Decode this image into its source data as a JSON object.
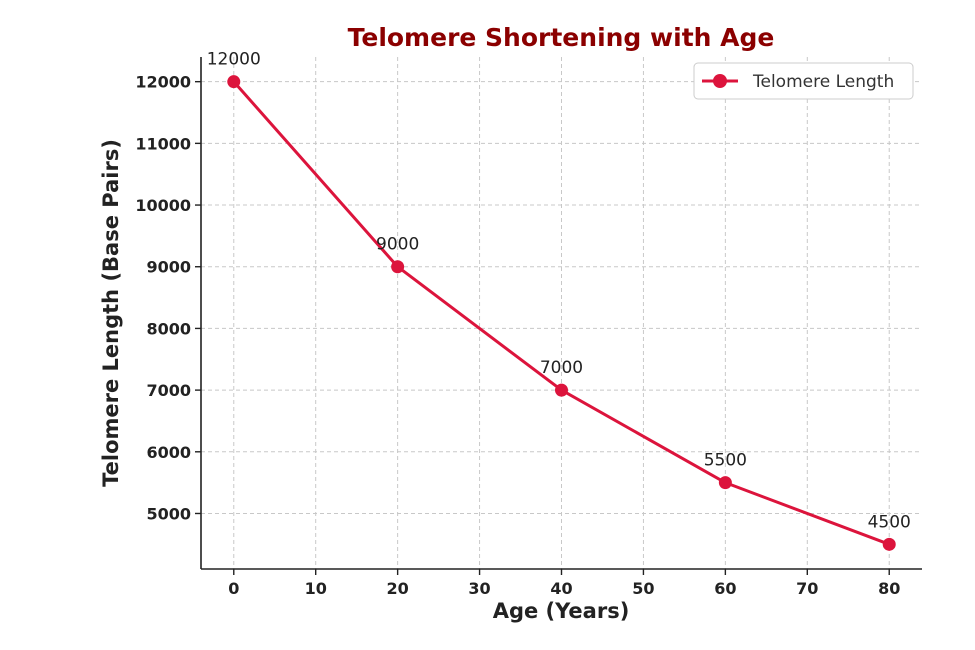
{
  "chart_data": {
    "type": "line",
    "title": "Telomere Shortening with Age",
    "xlabel": "Age (Years)",
    "ylabel": "Telomere Length (Base Pairs)",
    "xlim": [
      -4,
      84
    ],
    "ylim": [
      4100,
      12400
    ],
    "xticks": [
      0,
      10,
      20,
      30,
      40,
      50,
      60,
      70,
      80
    ],
    "yticks": [
      5000,
      6000,
      7000,
      8000,
      9000,
      10000,
      11000,
      12000
    ],
    "grid": true,
    "legend_position": "top-right",
    "colors": {
      "line": "#dc143c",
      "title": "#8b0000",
      "grid": "#c8c8c8",
      "axis": "#222222"
    },
    "series": [
      {
        "name": "Telomere Length",
        "x": [
          0,
          20,
          40,
          60,
          80
        ],
        "values": [
          12000,
          9000,
          7000,
          5500,
          4500
        ],
        "data_labels": [
          "12000",
          "9000",
          "7000",
          "5500",
          "4500"
        ]
      }
    ]
  }
}
